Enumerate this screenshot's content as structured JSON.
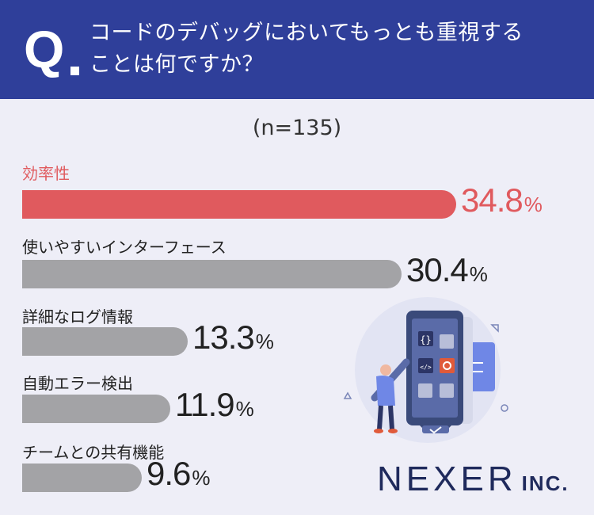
{
  "header": {
    "q_mark": "Q",
    "question_line1": "コードのデバッグにおいてもっとも重視する",
    "question_line2": "ことは何ですか？"
  },
  "sample": "(n=135)",
  "brand": {
    "name": "NEXER",
    "suffix": "INC."
  },
  "colors": {
    "header": "#2f3f9a",
    "highlight": "#e05a5e",
    "bar": "#a3a3a6",
    "background": "#eeeef7"
  },
  "chart_data": {
    "type": "bar",
    "orientation": "horizontal",
    "unit": "%",
    "categories": [
      "効率性",
      "使いやすいインターフェース",
      "詳細なログ情報",
      "自動エラー検出",
      "チームとの共有機能"
    ],
    "values": [
      34.8,
      30.4,
      13.3,
      11.9,
      9.6
    ],
    "value_labels": [
      "34.8",
      "30.4",
      "13.3",
      "11.9",
      "9.6"
    ],
    "highlight_index": 0
  }
}
